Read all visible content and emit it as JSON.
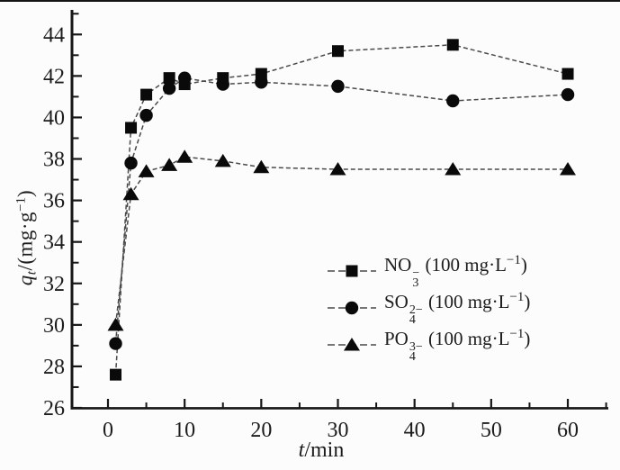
{
  "chart_data": {
    "type": "line",
    "title": "",
    "xlabel": "t/min",
    "ylabel": "qt/(mg·g-1)",
    "xlim": [
      -4.7,
      65.3
    ],
    "ylim": [
      26,
      45.2
    ],
    "grid": false,
    "line_style": "dashed",
    "legend_position": "inside-right-middle",
    "x": [
      1,
      3,
      5,
      8,
      10,
      15,
      20,
      30,
      45,
      60
    ],
    "series": [
      {
        "name": "NO3- (100 mg·L-1)",
        "marker": "square",
        "values": [
          27.6,
          39.5,
          41.1,
          41.9,
          41.6,
          41.9,
          42.1,
          43.2,
          43.5,
          42.1
        ]
      },
      {
        "name": "SO4 2- (100 mg·L-1)",
        "marker": "circle",
        "values": [
          29.1,
          37.8,
          40.1,
          41.4,
          41.9,
          41.6,
          41.7,
          41.5,
          40.8,
          41.1
        ]
      },
      {
        "name": "PO4 3- (100 mg·L-1)",
        "marker": "triangle",
        "values": [
          30.0,
          36.3,
          37.4,
          37.7,
          38.1,
          37.9,
          37.6,
          37.5,
          37.5,
          37.5
        ]
      }
    ],
    "y_major_ticks": [
      26,
      28,
      30,
      32,
      34,
      36,
      38,
      40,
      42,
      44
    ],
    "y_minor_ticks": [
      27,
      29,
      31,
      33,
      35,
      37,
      39,
      41,
      43,
      45
    ],
    "x_major_ticks": [
      0,
      10,
      20,
      30,
      40,
      50,
      60
    ],
    "x_minor_ticks": [
      5,
      15,
      25,
      35,
      45,
      55,
      65
    ],
    "colors": {
      "line": "#4a4a4a",
      "marker": "#0a0a0a",
      "axis": "#161616",
      "text": "#1c1c1c"
    }
  },
  "axes": {
    "y_title": {
      "var": "q",
      "var_sub": "t",
      "unit_open": "/(mg·g",
      "unit_exp": "−1",
      "unit_close": ")"
    },
    "x_title": {
      "var": "t",
      "unit": "/min"
    }
  },
  "legend": {
    "items": [
      {
        "marker": "square",
        "ion_base": "NO",
        "ion_sup": "−",
        "ion_sub": "3",
        "conc_open": " (100 mg·L",
        "conc_exp": "−1",
        "conc_close": ")"
      },
      {
        "marker": "circle",
        "ion_base": "SO",
        "ion_sup": "2−",
        "ion_sub": "4",
        "conc_open": " (100 mg·L",
        "conc_exp": "−1",
        "conc_close": ")"
      },
      {
        "marker": "triangle",
        "ion_base": "PO",
        "ion_sup": "3−",
        "ion_sub": "4",
        "conc_open": " (100 mg·L",
        "conc_exp": "−1",
        "conc_close": ")"
      }
    ]
  }
}
